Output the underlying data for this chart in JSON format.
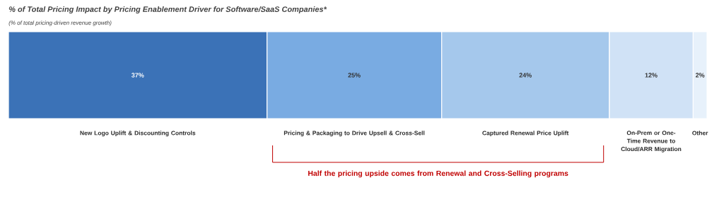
{
  "chart_data": {
    "type": "bar",
    "orientation": "horizontal",
    "stacked": true,
    "title": "% of Total Pricing Impact by Pricing Enablement Driver for Software/SaaS Companies*",
    "subtitle": "(% of total pricing-driven revenue growth)",
    "categories": [
      null
    ],
    "series": [
      {
        "name": "New Logo Uplift & Discounting Controls",
        "color": "#3b72b7",
        "values": [
          37
        ],
        "value_labels": [
          "37%"
        ]
      },
      {
        "name": "Pricing & Packaging to Drive Upsell & Cross-Sell",
        "color": "#79abe2",
        "values": [
          25
        ],
        "value_labels": [
          "25%"
        ]
      },
      {
        "name": "Captured Renewal Price Uplift",
        "color": "#a5c8ec",
        "values": [
          24
        ],
        "value_labels": [
          "24%"
        ]
      },
      {
        "name": "On-Prem or One-Time Revenue to Cloud/ARR Migration",
        "color": "#d0e2f6",
        "values": [
          12
        ],
        "value_labels": [
          "12%"
        ]
      },
      {
        "name": "Other",
        "color": "#e7f1fb",
        "values": [
          2
        ],
        "value_labels": [
          "2%"
        ]
      }
    ],
    "annotations": [
      "Half the pricing upside comes from Renewal and Cross-Selling programs"
    ]
  }
}
